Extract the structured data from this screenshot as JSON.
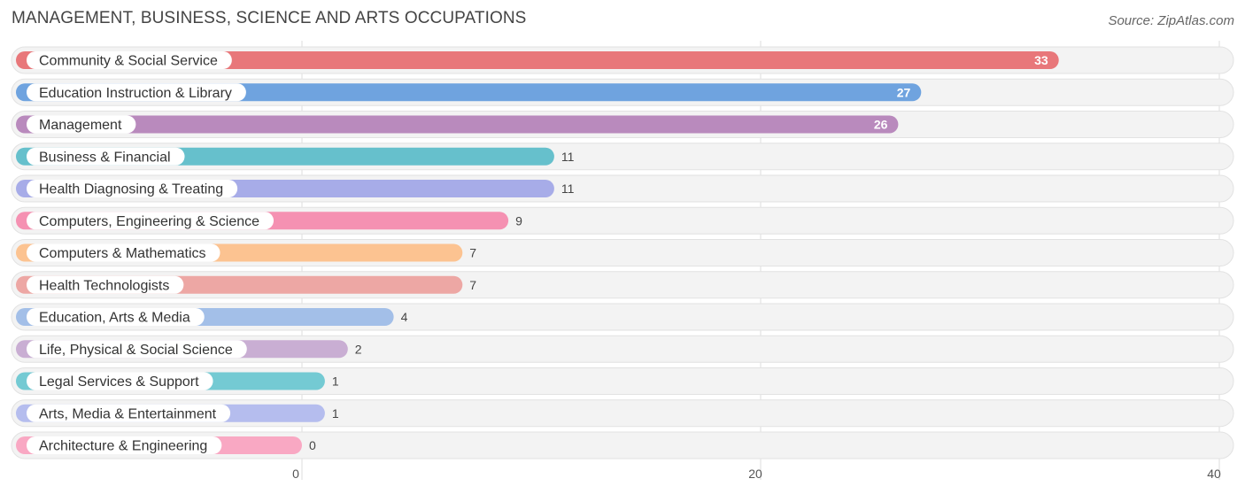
{
  "title": "MANAGEMENT, BUSINESS, SCIENCE AND ARTS OCCUPATIONS",
  "source": "Source: ZipAtlas.com",
  "chart_data": {
    "type": "bar",
    "orientation": "horizontal",
    "title": "MANAGEMENT, BUSINESS, SCIENCE AND ARTS OCCUPATIONS",
    "categories": [
      "Community & Social Service",
      "Education Instruction & Library",
      "Management",
      "Business & Financial",
      "Health Diagnosing & Treating",
      "Computers, Engineering & Science",
      "Computers & Mathematics",
      "Health Technologists",
      "Education, Arts & Media",
      "Life, Physical & Social Science",
      "Legal Services & Support",
      "Arts, Media & Entertainment",
      "Architecture & Engineering"
    ],
    "values": [
      33,
      27,
      26,
      11,
      11,
      9,
      7,
      7,
      4,
      2,
      1,
      1,
      0
    ],
    "colors": [
      "#e8777a",
      "#6fa3df",
      "#b98abd",
      "#66c0cc",
      "#a7ace8",
      "#f591b2",
      "#fcc391",
      "#eda7a4",
      "#a3bfe8",
      "#c9aed3",
      "#74cad3",
      "#b5bdee",
      "#f9a8c3"
    ],
    "xlim": [
      0,
      40
    ],
    "xticks": [
      0,
      20,
      40
    ],
    "grid": true,
    "legend": "none"
  }
}
